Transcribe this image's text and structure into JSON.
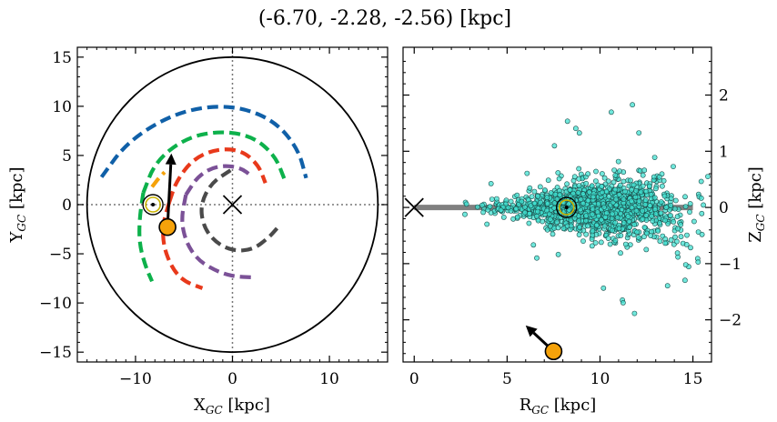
{
  "figure": {
    "title": "(-6.70, -2.28, -2.56) [kpc]"
  },
  "chart_data": [
    {
      "type": "scatter",
      "panel": "left",
      "xlabel": "X_GC [kpc]",
      "ylabel": "Y_GC [kpc]",
      "xlim": [
        -16,
        16
      ],
      "ylim": [
        -16,
        16
      ],
      "xticks": [
        -10,
        0,
        10
      ],
      "yticks": [
        -15,
        -10,
        -5,
        0,
        5,
        10,
        15
      ],
      "tick_labels_x": [
        "−10",
        "0",
        "10"
      ],
      "tick_labels_y": [
        "−15",
        "−10",
        "−5",
        "0",
        "5",
        "10",
        "15"
      ],
      "grid": false,
      "outer_circle_radius_kpc": 15,
      "galactic_center": {
        "x": 0,
        "y": 0,
        "marker": "x"
      },
      "sun": {
        "x": -8.2,
        "y": 0,
        "marker": "circled-dot"
      },
      "object": {
        "x": -6.7,
        "y": -2.28,
        "color": "#f5a20a"
      },
      "velocity_arrow": {
        "from": [
          -6.7,
          -2.28
        ],
        "to": [
          -6.3,
          5.2
        ]
      },
      "spiral_arms": [
        {
          "color": "#1060a8",
          "r": 10.0,
          "start_deg": 120,
          "end_deg": 23
        },
        {
          "color": "#0db14b",
          "r": 7.6,
          "start_deg": 112,
          "end_deg": 12
        },
        {
          "color": "#e8391b",
          "r": 5.8,
          "start_deg": 95,
          "end_deg": 5
        },
        {
          "color": "#7b5197",
          "r": 4.8,
          "start_deg": 105,
          "end_deg": 12
        },
        {
          "color": "#4a4a4a",
          "r": 3.6,
          "start_deg": 98,
          "end_deg": 45
        },
        {
          "color": "#f5a20a",
          "r": 8.9,
          "start_deg": 115,
          "end_deg": 5
        },
        {
          "color": "#0db14b",
          "r_inner": 8.3,
          "start_deg": 160,
          "end_deg": 240
        },
        {
          "color": "#e8391b",
          "r_inner": 6.6,
          "start_deg": 160,
          "end_deg": 235
        },
        {
          "color": "#7b5197",
          "r_inner": 5.0,
          "start_deg": 160,
          "end_deg": 260
        },
        {
          "color": "#4a4a4a",
          "r_inner": 3.3,
          "start_deg": 160,
          "end_deg": 330
        }
      ]
    },
    {
      "type": "scatter",
      "panel": "right",
      "xlabel": "R_GC [kpc]",
      "ylabel": "Z_GC [kpc]",
      "xlim": [
        -0.6,
        16
      ],
      "ylim": [
        -2.75,
        2.85
      ],
      "xticks": [
        0,
        5,
        10,
        15
      ],
      "yticks": [
        -2,
        -1,
        0,
        1,
        2
      ],
      "tick_labels_x": [
        "0",
        "5",
        "10",
        "15"
      ],
      "tick_labels_y": [
        "−2",
        "−1",
        "0",
        "1",
        "2"
      ],
      "y_axis_side": "right",
      "grid": false,
      "disk_line": {
        "x0": 0,
        "x1": 15,
        "z": 0,
        "color": "#808080"
      },
      "galactic_center": {
        "x": 0,
        "z": 0,
        "marker": "x"
      },
      "sun": {
        "x": 8.2,
        "z": 0,
        "marker": "circled-dot"
      },
      "object": {
        "x": 7.5,
        "z": -2.56,
        "color": "#f5a20a"
      },
      "velocity_arrow": {
        "from": [
          7.5,
          -2.56
        ],
        "to": [
          6.0,
          -2.1
        ]
      },
      "star_cloud": {
        "color": "#40e0d0",
        "edge": "#1b4d4a",
        "count": 1500,
        "r_center": 9.8,
        "z_spread": 0.25
      }
    }
  ]
}
